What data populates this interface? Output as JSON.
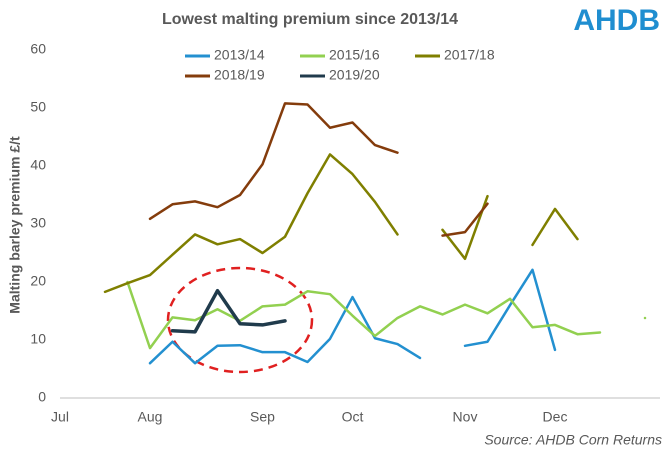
{
  "chart_data": {
    "type": "line",
    "title": "Lowest malting premium since 2013/14",
    "y_label": "Malting barley premium £/t",
    "source": "Source: AHDB Corn Returns",
    "logo": "AHDB",
    "categories": [
      "Jul",
      null,
      null,
      null,
      "Aug",
      null,
      null,
      null,
      null,
      "Sep",
      null,
      null,
      null,
      "Oct",
      null,
      null,
      null,
      null,
      "Nov",
      null,
      null,
      null,
      "Dec",
      null,
      null,
      null,
      null
    ],
    "ylim": [
      0,
      60
    ],
    "yticks": [
      0,
      10,
      20,
      30,
      40,
      50,
      60
    ],
    "grid": false,
    "series": [
      {
        "name": "2013/14",
        "color": "#2390d0",
        "values": [
          null,
          null,
          null,
          null,
          6.0,
          9.7,
          6.0,
          9.0,
          9.1,
          7.9,
          7.9,
          6.2,
          10.2,
          17.4,
          10.3,
          9.3,
          6.9,
          null,
          9.0,
          9.7,
          16.0,
          22.1,
          8.3,
          null,
          null,
          null,
          null
        ]
      },
      {
        "name": "2015/16",
        "color": "#92d050",
        "values": [
          null,
          null,
          null,
          20.0,
          8.6,
          13.9,
          13.4,
          15.3,
          13.3,
          15.8,
          16.1,
          18.4,
          17.9,
          14.2,
          10.7,
          13.8,
          15.8,
          14.4,
          16.1,
          14.6,
          17.1,
          12.2,
          12.6,
          11.0,
          11.3,
          null,
          13.8
        ]
      },
      {
        "name": "2017/18",
        "color": "#7f7f00",
        "values": [
          null,
          null,
          18.3,
          19.8,
          21.2,
          24.7,
          28.2,
          26.5,
          27.4,
          25.0,
          27.8,
          35.3,
          42.0,
          38.6,
          33.8,
          28.2,
          null,
          29.0,
          24.0,
          34.8,
          null,
          26.4,
          32.6,
          27.4,
          null,
          null,
          null
        ]
      },
      {
        "name": "2018/19",
        "color": "#843c0c",
        "values": [
          null,
          null,
          null,
          null,
          30.9,
          33.4,
          33.9,
          32.9,
          35.0,
          40.3,
          50.8,
          50.6,
          46.6,
          47.5,
          43.6,
          42.3,
          null,
          28.0,
          28.6,
          33.5,
          null,
          null,
          null,
          null,
          null,
          null,
          null
        ]
      },
      {
        "name": "2019/20",
        "color": "#203b4c",
        "values": [
          null,
          null,
          null,
          null,
          null,
          11.6,
          11.4,
          18.5,
          12.8,
          12.6,
          13.3,
          null,
          null,
          null,
          null,
          null,
          null,
          null,
          null,
          null,
          null,
          null,
          null,
          null,
          null,
          null,
          null
        ]
      }
    ]
  }
}
